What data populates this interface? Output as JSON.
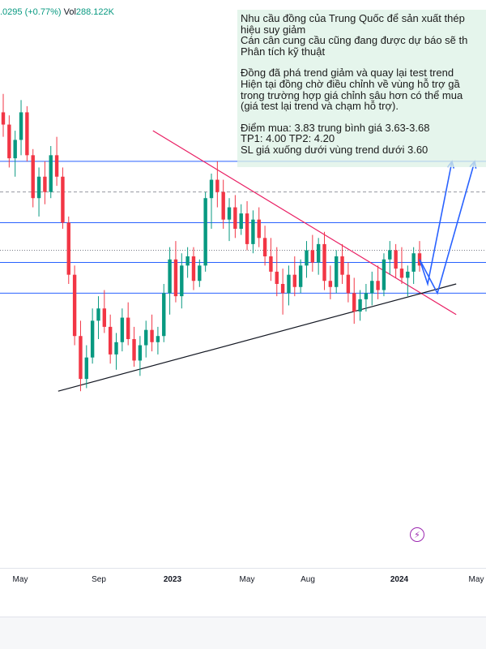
{
  "header": {
    "price_change": ".0295 (+0.77%)",
    "volume_label": "Vol",
    "volume_value": "288.122K"
  },
  "note": {
    "lines": [
      "Nhu cầu đồng của Trung Quốc để sản xuất thép",
      "hiệu suy giảm",
      "Cán cân cung cầu cũng đang được dự báo sẽ th",
      "Phân tích kỹ thuật",
      "",
      "Đồng đã phá trend giảm và quay lại test trend",
      "Hiện tại đồng chờ điều chỉnh về vùng hỗ trợ gầ",
      "trong trường hợp giá chỉnh sâu hơn có thể mua",
      "(giá test lại trend và chạm hỗ trợ).",
      "",
      "Điểm mua: 3.83 trung bình giá 3.63-3.68",
      "TP1: 4.00 TP2: 4.20",
      "SL giá xuống dưới vùng trend dưới 3.60"
    ]
  },
  "chart_data": {
    "type": "candlestick",
    "title": "",
    "xlabel": "",
    "ylabel": "",
    "x_ticks": [
      {
        "label": "May",
        "bold": false
      },
      {
        "label": "Sep",
        "bold": false
      },
      {
        "label": "2023",
        "bold": true
      },
      {
        "label": "May",
        "bold": false
      },
      {
        "label": "Aug",
        "bold": false
      },
      {
        "label": "2024",
        "bold": true
      },
      {
        "label": "May",
        "bold": false
      }
    ],
    "ylim": [
      2.9,
      4.7
    ],
    "horizontal_levels": [
      {
        "price": 4.2,
        "style": "solid",
        "color": "#2962ff"
      },
      {
        "price": 4.1,
        "style": "dashed",
        "color": "#9598a1"
      },
      {
        "price": 4.0,
        "style": "solid",
        "color": "#2962ff"
      },
      {
        "price": 3.91,
        "style": "dotted",
        "color": "#787b86"
      },
      {
        "price": 3.87,
        "style": "solid",
        "color": "#2962ff"
      },
      {
        "price": 3.77,
        "style": "solid",
        "color": "#2962ff"
      }
    ],
    "trendlines": [
      {
        "name": "downtrend",
        "from": [
          "2022-12-01",
          4.3
        ],
        "to": [
          "2024-04-01",
          3.7
        ],
        "color": "#e91e63"
      },
      {
        "name": "uptrend",
        "from": [
          "2022-07-01",
          3.45
        ],
        "to": [
          "2024-04-01",
          3.8
        ],
        "color": "#131722"
      }
    ],
    "projection": {
      "color": "#2962ff",
      "path_a": [
        3.88,
        3.8,
        4.2
      ],
      "path_b": [
        3.88,
        3.77,
        4.2
      ]
    },
    "colors": {
      "up": "#089981",
      "down": "#f23645"
    },
    "candles": [
      {
        "o": 4.36,
        "h": 4.42,
        "l": 4.28,
        "c": 4.32
      },
      {
        "o": 4.32,
        "h": 4.35,
        "l": 4.18,
        "c": 4.21
      },
      {
        "o": 4.21,
        "h": 4.3,
        "l": 4.15,
        "c": 4.27
      },
      {
        "o": 4.27,
        "h": 4.4,
        "l": 4.22,
        "c": 4.36
      },
      {
        "o": 4.36,
        "h": 4.38,
        "l": 4.2,
        "c": 4.22
      },
      {
        "o": 4.22,
        "h": 4.24,
        "l": 4.05,
        "c": 4.08
      },
      {
        "o": 4.08,
        "h": 4.18,
        "l": 4.02,
        "c": 4.15
      },
      {
        "o": 4.15,
        "h": 4.2,
        "l": 4.06,
        "c": 4.1
      },
      {
        "o": 4.1,
        "h": 4.25,
        "l": 4.08,
        "c": 4.22
      },
      {
        "o": 4.22,
        "h": 4.28,
        "l": 4.12,
        "c": 4.15
      },
      {
        "o": 4.15,
        "h": 4.18,
        "l": 3.98,
        "c": 4.0
      },
      {
        "o": 4.0,
        "h": 4.02,
        "l": 3.8,
        "c": 3.83
      },
      {
        "o": 3.83,
        "h": 3.86,
        "l": 3.6,
        "c": 3.63
      },
      {
        "o": 3.63,
        "h": 3.68,
        "l": 3.45,
        "c": 3.49
      },
      {
        "o": 3.49,
        "h": 3.6,
        "l": 3.46,
        "c": 3.56
      },
      {
        "o": 3.56,
        "h": 3.72,
        "l": 3.54,
        "c": 3.68
      },
      {
        "o": 3.68,
        "h": 3.76,
        "l": 3.62,
        "c": 3.72
      },
      {
        "o": 3.72,
        "h": 3.78,
        "l": 3.64,
        "c": 3.66
      },
      {
        "o": 3.66,
        "h": 3.7,
        "l": 3.54,
        "c": 3.57
      },
      {
        "o": 3.57,
        "h": 3.64,
        "l": 3.52,
        "c": 3.61
      },
      {
        "o": 3.61,
        "h": 3.72,
        "l": 3.58,
        "c": 3.69
      },
      {
        "o": 3.69,
        "h": 3.74,
        "l": 3.6,
        "c": 3.62
      },
      {
        "o": 3.62,
        "h": 3.66,
        "l": 3.53,
        "c": 3.55
      },
      {
        "o": 3.55,
        "h": 3.63,
        "l": 3.5,
        "c": 3.6
      },
      {
        "o": 3.6,
        "h": 3.68,
        "l": 3.56,
        "c": 3.65
      },
      {
        "o": 3.65,
        "h": 3.7,
        "l": 3.58,
        "c": 3.61
      },
      {
        "o": 3.61,
        "h": 3.66,
        "l": 3.57,
        "c": 3.63
      },
      {
        "o": 3.63,
        "h": 3.8,
        "l": 3.61,
        "c": 3.77
      },
      {
        "o": 3.77,
        "h": 3.92,
        "l": 3.7,
        "c": 3.88
      },
      {
        "o": 3.88,
        "h": 3.94,
        "l": 3.74,
        "c": 3.76
      },
      {
        "o": 3.76,
        "h": 3.9,
        "l": 3.72,
        "c": 3.86
      },
      {
        "o": 3.86,
        "h": 3.92,
        "l": 3.82,
        "c": 3.89
      },
      {
        "o": 3.89,
        "h": 3.92,
        "l": 3.78,
        "c": 3.81
      },
      {
        "o": 3.81,
        "h": 3.88,
        "l": 3.79,
        "c": 3.86
      },
      {
        "o": 3.86,
        "h": 4.1,
        "l": 3.84,
        "c": 4.08
      },
      {
        "o": 4.08,
        "h": 4.16,
        "l": 3.98,
        "c": 4.14
      },
      {
        "o": 4.14,
        "h": 4.2,
        "l": 4.05,
        "c": 4.1
      },
      {
        "o": 4.1,
        "h": 4.14,
        "l": 3.98,
        "c": 4.01
      },
      {
        "o": 4.01,
        "h": 4.08,
        "l": 3.94,
        "c": 4.05
      },
      {
        "o": 4.05,
        "h": 4.09,
        "l": 3.95,
        "c": 3.98
      },
      {
        "o": 3.98,
        "h": 4.06,
        "l": 3.96,
        "c": 4.03
      },
      {
        "o": 4.03,
        "h": 4.07,
        "l": 3.91,
        "c": 3.93
      },
      {
        "o": 3.93,
        "h": 4.04,
        "l": 3.9,
        "c": 4.01
      },
      {
        "o": 4.01,
        "h": 4.05,
        "l": 3.92,
        "c": 3.95
      },
      {
        "o": 3.95,
        "h": 3.99,
        "l": 3.86,
        "c": 3.89
      },
      {
        "o": 3.89,
        "h": 3.95,
        "l": 3.81,
        "c": 3.84
      },
      {
        "o": 3.84,
        "h": 3.92,
        "l": 3.76,
        "c": 3.8
      },
      {
        "o": 3.8,
        "h": 3.85,
        "l": 3.7,
        "c": 3.77
      },
      {
        "o": 3.77,
        "h": 3.86,
        "l": 3.73,
        "c": 3.83
      },
      {
        "o": 3.83,
        "h": 3.89,
        "l": 3.76,
        "c": 3.79
      },
      {
        "o": 3.79,
        "h": 3.88,
        "l": 3.77,
        "c": 3.86
      },
      {
        "o": 3.86,
        "h": 3.94,
        "l": 3.82,
        "c": 3.91
      },
      {
        "o": 3.91,
        "h": 3.96,
        "l": 3.84,
        "c": 3.87
      },
      {
        "o": 3.87,
        "h": 3.95,
        "l": 3.83,
        "c": 3.93
      },
      {
        "o": 3.93,
        "h": 3.97,
        "l": 3.78,
        "c": 3.81
      },
      {
        "o": 3.81,
        "h": 3.86,
        "l": 3.75,
        "c": 3.79
      },
      {
        "o": 3.79,
        "h": 3.91,
        "l": 3.77,
        "c": 3.89
      },
      {
        "o": 3.89,
        "h": 3.93,
        "l": 3.8,
        "c": 3.83
      },
      {
        "o": 3.83,
        "h": 3.87,
        "l": 3.74,
        "c": 3.77
      },
      {
        "o": 3.77,
        "h": 3.82,
        "l": 3.67,
        "c": 3.71
      },
      {
        "o": 3.71,
        "h": 3.78,
        "l": 3.68,
        "c": 3.75
      },
      {
        "o": 3.75,
        "h": 3.8,
        "l": 3.71,
        "c": 3.77
      },
      {
        "o": 3.77,
        "h": 3.84,
        "l": 3.73,
        "c": 3.81
      },
      {
        "o": 3.81,
        "h": 3.86,
        "l": 3.75,
        "c": 3.78
      },
      {
        "o": 3.78,
        "h": 3.9,
        "l": 3.76,
        "c": 3.88
      },
      {
        "o": 3.88,
        "h": 3.94,
        "l": 3.83,
        "c": 3.91
      },
      {
        "o": 3.91,
        "h": 3.93,
        "l": 3.82,
        "c": 3.85
      },
      {
        "o": 3.85,
        "h": 3.92,
        "l": 3.8,
        "c": 3.82
      },
      {
        "o": 3.82,
        "h": 3.86,
        "l": 3.76,
        "c": 3.84
      },
      {
        "o": 3.84,
        "h": 3.92,
        "l": 3.8,
        "c": 3.9
      },
      {
        "o": 3.9,
        "h": 3.94,
        "l": 3.84,
        "c": 3.86
      }
    ]
  }
}
